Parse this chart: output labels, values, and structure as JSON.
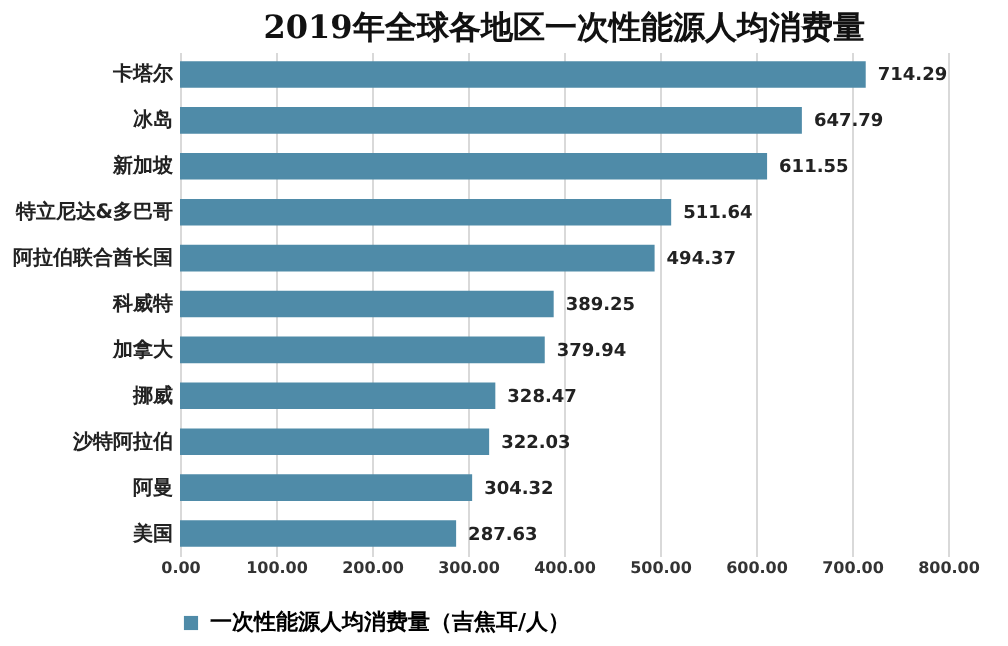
{
  "chart_data": {
    "type": "bar",
    "orientation": "horizontal",
    "title": "2019年全球各地区一次性能源人均消费量",
    "categories": [
      "卡塔尔",
      "冰岛",
      "新加坡",
      "特立尼达&多巴哥",
      "阿拉伯联合酋长国",
      "科威特",
      "加拿大",
      "挪威",
      "沙特阿拉伯",
      "阿曼",
      "美国"
    ],
    "series": [
      {
        "name": "一次性能源人均消费量（吉焦耳/人）",
        "color": "#4f8ba8",
        "values": [
          714.29,
          647.79,
          611.55,
          511.64,
          494.37,
          389.25,
          379.94,
          328.47,
          322.03,
          304.32,
          287.63
        ]
      }
    ],
    "xlim": [
      0,
      800
    ],
    "xticks": [
      {
        "value": 0,
        "label": "0.00"
      },
      {
        "value": 100,
        "label": "100.00"
      },
      {
        "value": 200,
        "label": "200.00"
      },
      {
        "value": 300,
        "label": "300.00"
      },
      {
        "value": 400,
        "label": "400.00"
      },
      {
        "value": 500,
        "label": "500.00"
      },
      {
        "value": 600,
        "label": "600.00"
      },
      {
        "value": 700,
        "label": "700.00"
      },
      {
        "value": 800,
        "label": "800.00"
      }
    ],
    "grid": "x",
    "legend": "bottom",
    "data_labels": true
  }
}
